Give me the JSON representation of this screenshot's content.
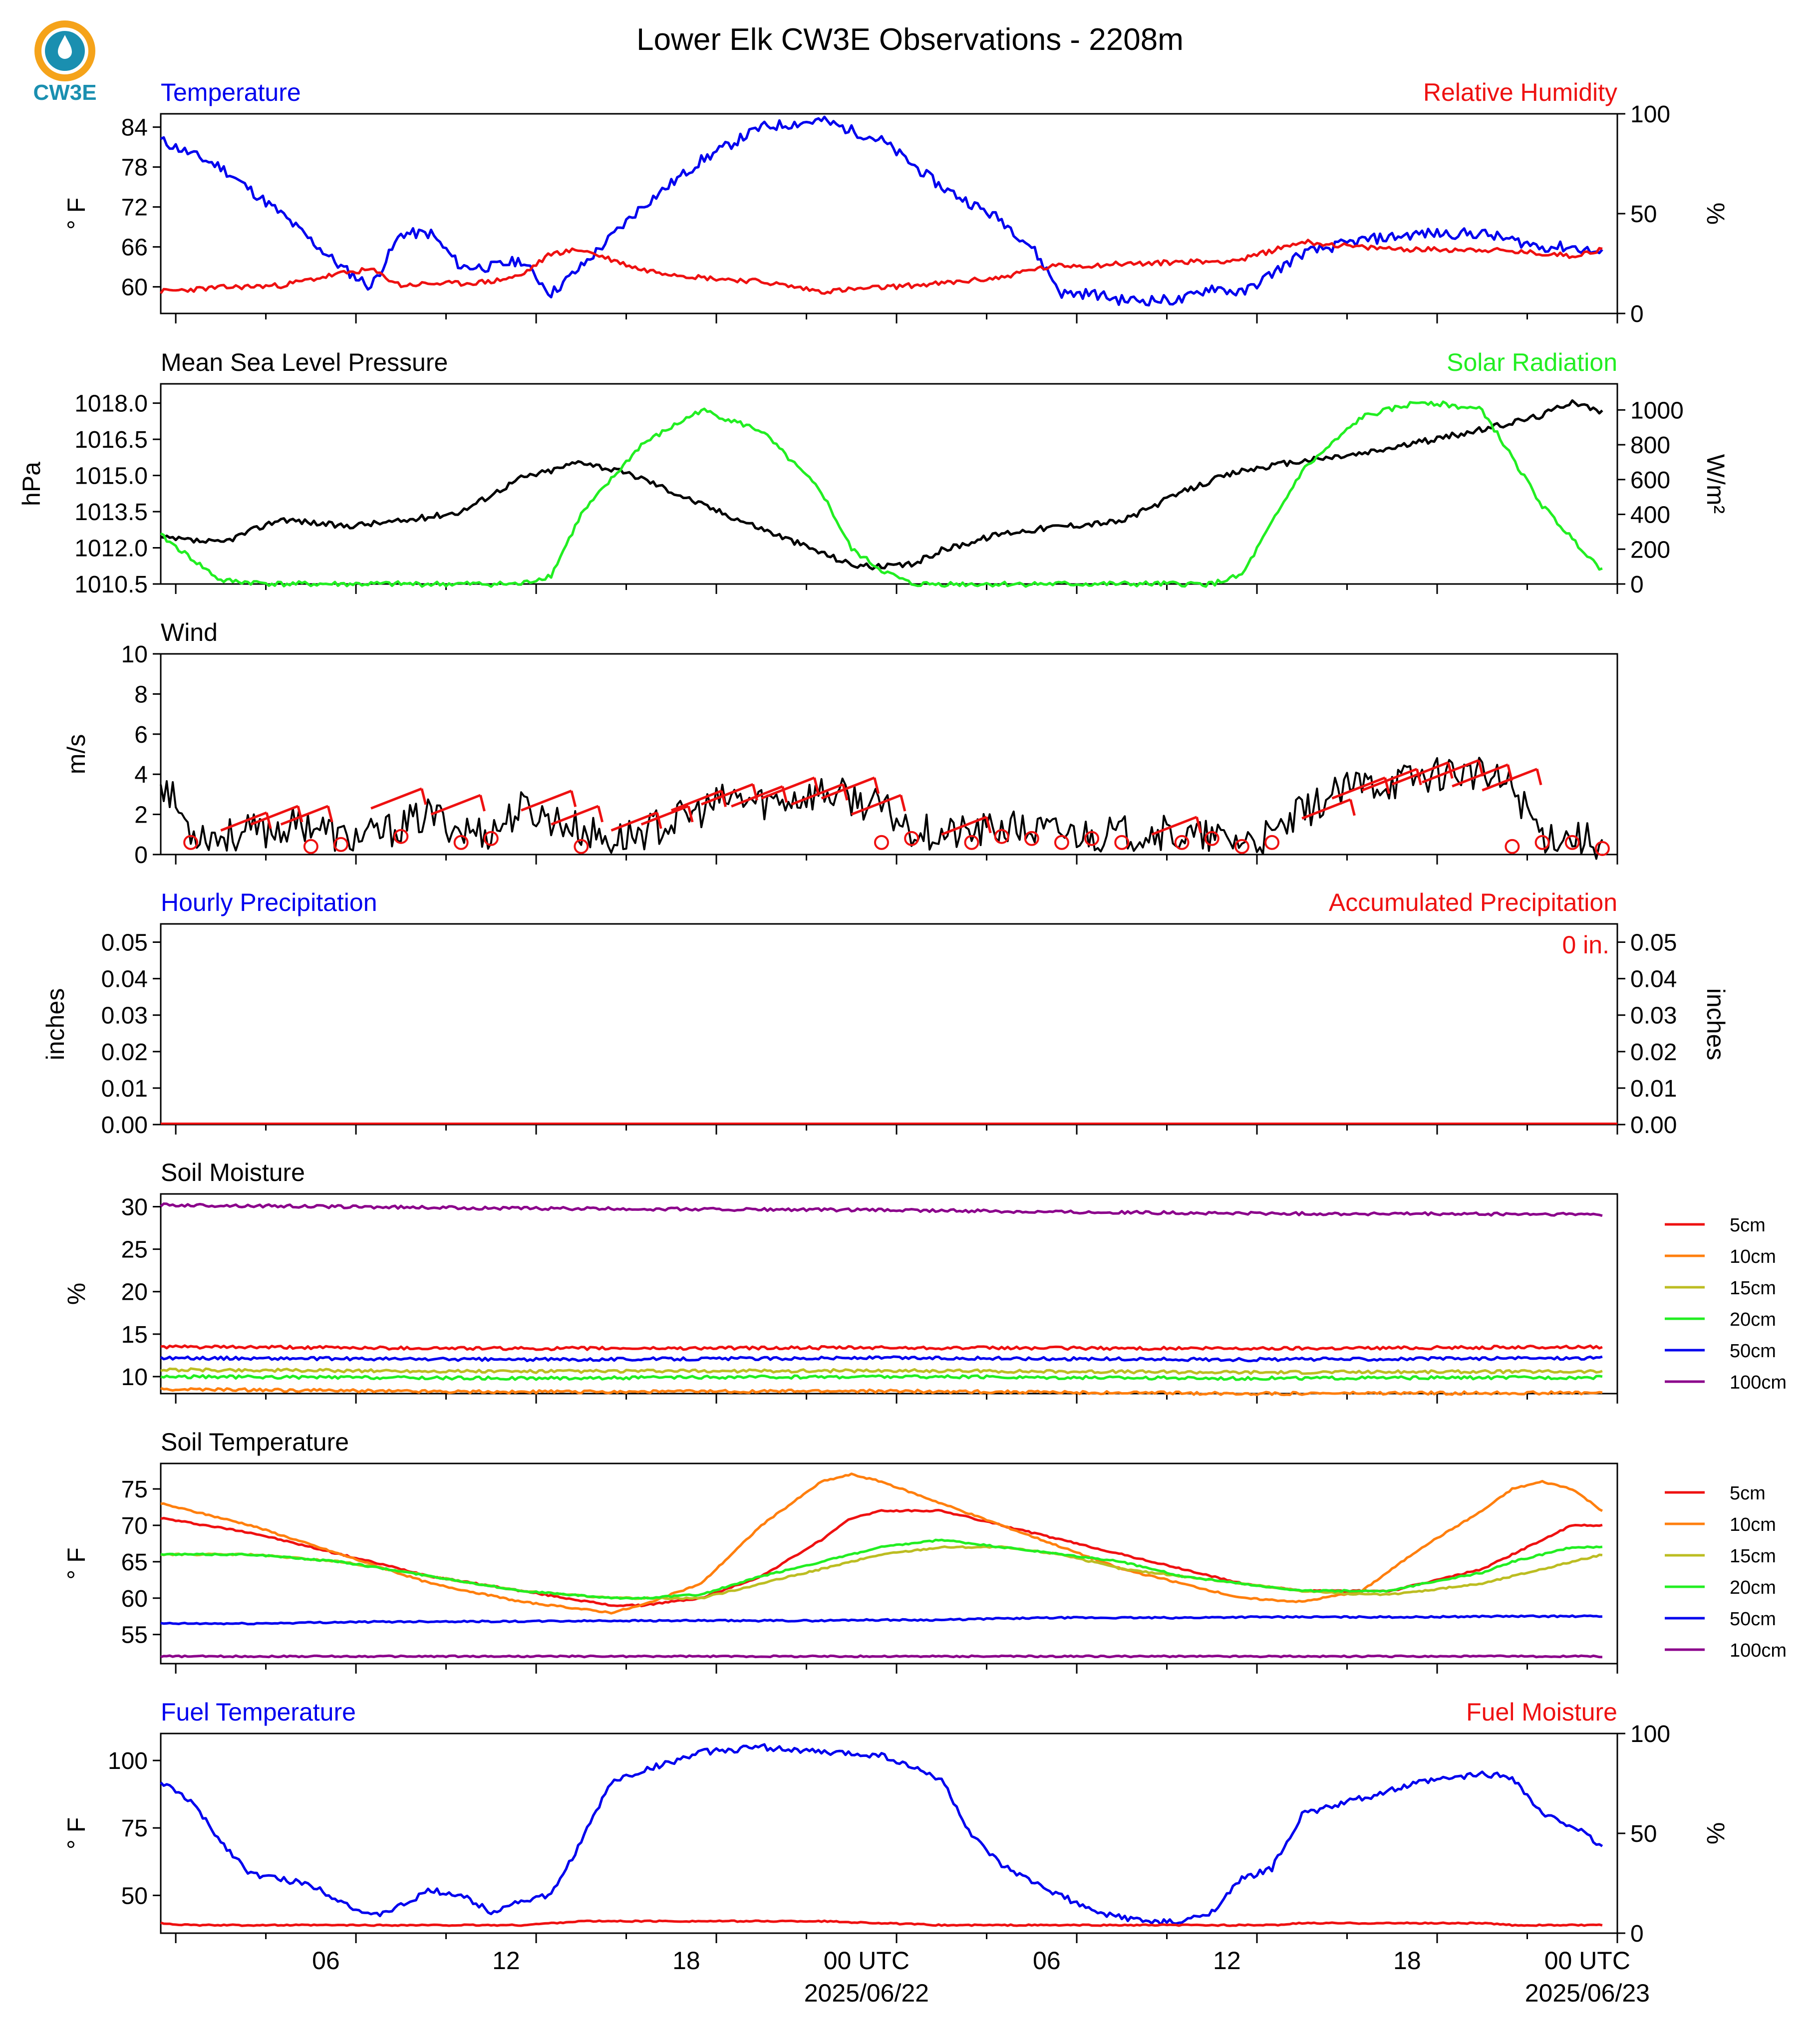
{
  "title": "Lower Elk CW3E Observations - 2208m",
  "logo": {
    "text": "CW3E",
    "icon": "cw3e-water-drop-logo"
  },
  "colors": {
    "blue": "#0000ee",
    "red": "#ee1111",
    "green": "#22ee22",
    "black": "#000000",
    "orange": "#ff7f0e",
    "olive": "#bcbd22",
    "purple": "#8b008b",
    "logo_orange": "#f5a31a",
    "logo_teal": "#1a8fb0"
  },
  "x_axis": {
    "ticks": [
      "06",
      "12",
      "18",
      "00 UTC",
      "06",
      "12",
      "18",
      "00 UTC"
    ],
    "dates": [
      "2025/06/22",
      "2025/06/23"
    ]
  },
  "legend_soil": [
    "5cm",
    "10cm",
    "15cm",
    "20cm",
    "50cm",
    "100cm"
  ],
  "panels": {
    "temp_rh": {
      "left_title": "Temperature",
      "right_title": "Relative Humidity",
      "left_unit": "° F",
      "right_unit": "%",
      "left_ticks": [
        "84",
        "78",
        "72",
        "66",
        "60"
      ],
      "right_ticks": [
        "100",
        "50",
        "0"
      ]
    },
    "pressure_solar": {
      "left_title": "Mean Sea Level Pressure",
      "right_title": "Solar Radiation",
      "left_unit": "hPa",
      "right_unit": "W/m²",
      "left_ticks": [
        "1018.0",
        "1016.5",
        "1015.0",
        "1013.5",
        "1012.0",
        "1010.5"
      ],
      "right_ticks": [
        "1000",
        "800",
        "600",
        "400",
        "200",
        "0"
      ]
    },
    "wind": {
      "left_title": "Wind",
      "left_unit": "m/s",
      "left_ticks": [
        "10",
        "8",
        "6",
        "4",
        "2",
        "0"
      ]
    },
    "precip": {
      "left_title": "Hourly Precipitation",
      "right_title": "Accumulated Precipitation",
      "left_unit": "inches",
      "right_unit": "inches",
      "accum_label": "0 in.",
      "left_ticks": [
        "0.05",
        "0.04",
        "0.03",
        "0.02",
        "0.01",
        "0.00"
      ],
      "right_ticks": [
        "0.05",
        "0.04",
        "0.03",
        "0.02",
        "0.01",
        "0.00"
      ]
    },
    "soil_moisture": {
      "left_title": "Soil Moisture",
      "left_unit": "%",
      "left_ticks": [
        "30",
        "25",
        "20",
        "15",
        "10"
      ]
    },
    "soil_temp": {
      "left_title": "Soil Temperature",
      "left_unit": "° F",
      "left_ticks": [
        "75",
        "70",
        "65",
        "60",
        "55"
      ]
    },
    "fuel": {
      "left_title": "Fuel Temperature",
      "right_title": "Fuel Moisture",
      "left_unit": "° F",
      "right_unit": "%",
      "left_ticks": [
        "100",
        "75",
        "50"
      ],
      "right_ticks": [
        "100",
        "50",
        "0"
      ]
    }
  },
  "chart_data": [
    {
      "type": "line",
      "panel": "temp_rh",
      "x_hours": [
        0,
        2,
        4,
        6,
        7,
        8,
        9,
        10,
        11,
        12,
        13,
        14,
        16,
        18,
        20,
        22,
        24,
        26,
        28,
        29,
        30,
        31,
        32,
        33,
        34,
        35,
        36,
        38,
        40,
        42,
        44,
        46,
        47,
        48
      ],
      "series": [
        {
          "name": "Temperature",
          "axis": "left",
          "ylim": [
            56,
            86
          ],
          "values": [
            82,
            78,
            71,
            63,
            60,
            68,
            68,
            63,
            63,
            64,
            59,
            63,
            72,
            79,
            84,
            85,
            82,
            75,
            70,
            66,
            59,
            59,
            58,
            58,
            58,
            60,
            59,
            65,
            67,
            68,
            68,
            66,
            66,
            65
          ]
        },
        {
          "name": "Relative Humidity",
          "axis": "right",
          "ylim": [
            0,
            100
          ],
          "values": [
            11,
            13,
            14,
            20,
            22,
            14,
            15,
            15,
            16,
            19,
            30,
            32,
            22,
            18,
            16,
            11,
            13,
            15,
            18,
            22,
            24,
            24,
            25,
            25,
            26,
            26,
            27,
            36,
            33,
            32,
            32,
            30,
            29,
            32
          ]
        }
      ]
    },
    {
      "type": "line",
      "panel": "pressure_solar",
      "x_hours": [
        0,
        2,
        4,
        6,
        8,
        10,
        12,
        13,
        14,
        16,
        18,
        20,
        22,
        23,
        24,
        25,
        26,
        28,
        30,
        32,
        34,
        35,
        36,
        38,
        40,
        42,
        44,
        46,
        47,
        48
      ],
      "series": [
        {
          "name": "Mean Sea Level Pressure",
          "axis": "left",
          "ylim": [
            1010.5,
            1018.8
          ],
          "values": [
            1012.4,
            1012.2,
            1013.2,
            1012.9,
            1013.1,
            1013.5,
            1014.9,
            1015.2,
            1015.6,
            1014.9,
            1013.8,
            1012.8,
            1011.8,
            1011.3,
            1011.2,
            1011.3,
            1011.9,
            1012.6,
            1012.9,
            1013.1,
            1014.3,
            1014.8,
            1015.2,
            1015.6,
            1015.9,
            1016.4,
            1016.9,
            1017.5,
            1018.1,
            1017.6
          ]
        },
        {
          "name": "Solar Radiation",
          "axis": "right",
          "ylim": [
            0,
            1150
          ],
          "values": [
            280,
            20,
            0,
            0,
            0,
            0,
            0,
            50,
            400,
            800,
            1000,
            880,
            530,
            200,
            80,
            0,
            0,
            0,
            0,
            0,
            0,
            0,
            50,
            650,
            960,
            1050,
            1000,
            450,
            260,
            80
          ]
        }
      ]
    },
    {
      "type": "line",
      "panel": "wind",
      "ylim": [
        0,
        10
      ],
      "x_hours": [
        0,
        1,
        2,
        3,
        4,
        5,
        6,
        7,
        8,
        9,
        10,
        11,
        12,
        13,
        14,
        15,
        16,
        17,
        18,
        19,
        20,
        21,
        22,
        23,
        24,
        25,
        26,
        27,
        28,
        29,
        30,
        31,
        32,
        33,
        34,
        35,
        36,
        37,
        38,
        39,
        40,
        41,
        42,
        43,
        44,
        45,
        46,
        47,
        48
      ],
      "series": [
        {
          "name": "Wind",
          "values": [
            3.8,
            1.2,
            0.9,
            1.1,
            1.3,
            1.6,
            0.8,
            0.9,
            1.4,
            2.0,
            1.2,
            1.1,
            2.3,
            1.8,
            1.2,
            0.7,
            1.1,
            1.6,
            2.2,
            2.8,
            2.6,
            2.8,
            3.1,
            2.8,
            2.3,
            1.3,
            1.0,
            1.1,
            1.3,
            1.2,
            1.1,
            1.0,
            1.0,
            1.2,
            0.9,
            0.8,
            0.7,
            0.8,
            2.1,
            2.9,
            3.5,
            3.6,
            3.9,
            4.2,
            3.9,
            3.4,
            1.0,
            0.9,
            0.6
          ]
        }
      ],
      "barb_hours": [
        1,
        2,
        3,
        4,
        5,
        6,
        7,
        8,
        9,
        10,
        11,
        12,
        13,
        14,
        15,
        16,
        17,
        18,
        19,
        20,
        21,
        22,
        23,
        24,
        25,
        26,
        27,
        28,
        29,
        30,
        31,
        32,
        33,
        34,
        35,
        36,
        37,
        38,
        39,
        40,
        41,
        42,
        43,
        44,
        45,
        46,
        47,
        48
      ],
      "barb_values": [
        0.6,
        1.2,
        1.5,
        1.5,
        0.4,
        0.5,
        2.3,
        0.9,
        2.0,
        0.6,
        0.8,
        2.2,
        1.5,
        0.4,
        1.2,
        1.5,
        2.2,
        2.5,
        2.4,
        2.8,
        2.5,
        2.8,
        2.0,
        0.6,
        0.8,
        1.0,
        0.6,
        0.9,
        0.8,
        0.6,
        0.8,
        0.6,
        1.0,
        0.6,
        0.8,
        0.4,
        0.6,
        1.8,
        2.8,
        3.2,
        3.5,
        3.6,
        3.4,
        3.2,
        0.4,
        0.6,
        0.6,
        0.3
      ]
    },
    {
      "type": "bar",
      "panel": "precip",
      "series": [
        {
          "name": "Hourly Precipitation",
          "axis": "left",
          "ylim": [
            0,
            0.055
          ],
          "values": [
            0
          ]
        },
        {
          "name": "Accumulated Precipitation",
          "axis": "right",
          "ylim": [
            0,
            0.055
          ],
          "values": [
            0
          ]
        }
      ]
    },
    {
      "type": "line",
      "panel": "soil_moisture",
      "ylim": [
        8,
        31.5
      ],
      "x_hours": [
        0,
        12,
        24,
        36,
        48
      ],
      "series": [
        {
          "name": "5cm",
          "values": [
            13.5,
            13.3,
            13.4,
            13.3,
            13.5
          ]
        },
        {
          "name": "10cm",
          "values": [
            8.5,
            8.2,
            8.3,
            8.0,
            8.1
          ]
        },
        {
          "name": "15cm",
          "values": [
            10.8,
            10.6,
            10.7,
            10.5,
            10.6
          ]
        },
        {
          "name": "20cm",
          "values": [
            10.0,
            9.8,
            10.0,
            9.8,
            9.9
          ]
        },
        {
          "name": "50cm",
          "values": [
            12.2,
            12.0,
            12.2,
            12.0,
            12.2
          ]
        },
        {
          "name": "100cm",
          "values": [
            30.2,
            29.8,
            29.6,
            29.2,
            29.1
          ]
        }
      ]
    },
    {
      "type": "line",
      "panel": "soil_temp",
      "ylim": [
        51,
        78.5
      ],
      "x_hours": [
        0,
        3,
        6,
        9,
        12,
        15,
        16,
        18,
        20,
        22,
        23,
        24,
        26,
        28,
        30,
        32,
        34,
        36,
        38,
        40,
        41,
        42,
        44,
        45,
        46,
        47,
        48
      ],
      "series": [
        {
          "name": "5cm",
          "values": [
            71,
            69,
            66,
            63,
            61,
            59,
            59,
            60,
            63,
            68,
            71,
            72,
            72,
            70,
            68,
            66,
            64,
            62,
            61,
            61,
            61,
            62,
            64,
            66,
            68,
            70,
            70
          ]
        },
        {
          "name": "10cm",
          "values": [
            73,
            70,
            66,
            62,
            59.5,
            58,
            59,
            62,
            70,
            76,
            77,
            76,
            73,
            70,
            67,
            64,
            62,
            60,
            59.5,
            61,
            64,
            67,
            72,
            75,
            76,
            75,
            72
          ]
        },
        {
          "name": "15cm",
          "values": [
            66,
            66,
            65,
            63,
            61,
            60,
            60,
            60,
            62,
            64,
            65,
            66,
            67,
            67,
            66,
            64,
            63,
            62,
            61,
            60.5,
            60.5,
            61,
            62,
            63,
            64,
            65,
            66
          ]
        },
        {
          "name": "20cm",
          "values": [
            66,
            66,
            65,
            63,
            61,
            60,
            60,
            60.5,
            63,
            65,
            66,
            67,
            68,
            67,
            66,
            65,
            63,
            62,
            61,
            61,
            61,
            62,
            63.5,
            65,
            66,
            67,
            67
          ]
        },
        {
          "name": "50cm",
          "values": [
            56.5,
            56.5,
            56.7,
            56.8,
            56.8,
            56.9,
            56.9,
            56.9,
            56.9,
            56.9,
            57.0,
            57.0,
            57.0,
            57.2,
            57.3,
            57.3,
            57.3,
            57.4,
            57.4,
            57.4,
            57.4,
            57.4,
            57.5,
            57.5,
            57.5,
            57.5,
            57.5
          ]
        },
        {
          "name": "100cm",
          "values": [
            52,
            52,
            52,
            52,
            52,
            52,
            52,
            52,
            52,
            52,
            52,
            52,
            52,
            52,
            52,
            52,
            52,
            52,
            52,
            52,
            52,
            52,
            52,
            52,
            52,
            52,
            52
          ]
        }
      ]
    },
    {
      "type": "line",
      "panel": "fuel",
      "x_hours": [
        0,
        1,
        2,
        3,
        4,
        5,
        6,
        7,
        8,
        9,
        10,
        11,
        12,
        13,
        14,
        15,
        16,
        18,
        20,
        22,
        24,
        26,
        27,
        28,
        29,
        30,
        31,
        32,
        33,
        34,
        35,
        36,
        37,
        38,
        40,
        42,
        44,
        45,
        46,
        47,
        48
      ],
      "series": [
        {
          "name": "Fuel Temperature",
          "axis": "left",
          "ylim": [
            36,
            110
          ],
          "values": [
            92,
            85,
            70,
            58,
            56,
            54,
            48,
            42,
            46,
            52,
            50,
            44,
            48,
            50,
            70,
            92,
            96,
            103,
            105,
            103,
            102,
            93,
            72,
            61,
            55,
            50,
            44,
            42,
            40,
            40,
            44,
            56,
            60,
            80,
            86,
            92,
            95,
            94,
            80,
            76,
            68
          ]
        },
        {
          "name": "Fuel Moisture",
          "axis": "right",
          "ylim": [
            0,
            100
          ],
          "values": [
            5,
            4,
            4,
            4,
            4,
            4,
            4,
            4,
            4,
            4,
            4,
            4,
            4,
            5,
            6,
            6,
            6,
            6,
            6,
            6,
            5,
            4,
            4,
            4,
            4,
            4,
            4,
            4,
            4,
            4,
            4,
            4,
            4,
            5,
            5,
            5,
            5,
            4,
            4,
            4,
            4
          ]
        }
      ]
    }
  ]
}
